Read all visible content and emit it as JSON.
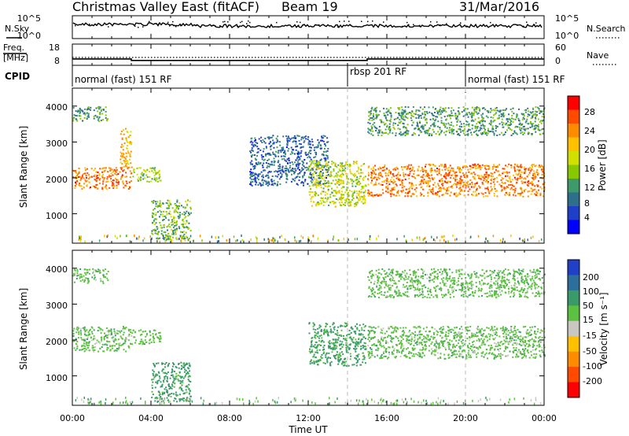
{
  "header": {
    "title": "Christmas Valley East (fitACF)",
    "beam": "Beam 19",
    "date": "31/Mar/2016"
  },
  "labels": {
    "nsky": "N.Sky",
    "nsearch": "N.Search",
    "freq": "Freq.",
    "freq_unit": "[MHz]",
    "nave": "Nave",
    "cpid": "CPID",
    "noise_left_ticks": [
      "10^5",
      "10^0"
    ],
    "noise_right_ticks": [
      "10^5",
      "10^0"
    ],
    "freq_ticks": [
      "18",
      "8"
    ],
    "nave_ticks": [
      "60",
      "0"
    ]
  },
  "cpid_segments": [
    {
      "label": "normal (fast) 151 RF",
      "start_hour": 0
    },
    {
      "label": "rbsp 201 RF",
      "start_hour": 14
    },
    {
      "label": "normal (fast) 151 RF",
      "start_hour": 20
    }
  ],
  "axes": {
    "xlabel": "Time UT",
    "ylabel_top": "Slant Range [km]",
    "ylabel_bottom": "Slant Range [km]",
    "x_ticks": [
      "00:00",
      "04:00",
      "08:00",
      "12:00",
      "16:00",
      "20:00",
      "00:00"
    ],
    "y_ticks_top": [
      "4000",
      "3000",
      "2000",
      "1000"
    ],
    "y_ticks_bottom": [
      "4000",
      "3000",
      "2000",
      "1000"
    ]
  },
  "colorbars": {
    "power": {
      "label": "Power [dB]",
      "ticks": [
        "28",
        "24",
        "20",
        "16",
        "12",
        "8",
        "4"
      ],
      "colors": [
        "#ff0000",
        "#ff4a00",
        "#ff8c00",
        "#ffc000",
        "#d2e000",
        "#88c800",
        "#3d9a6a",
        "#2e6f8c",
        "#1e3fc8",
        "#0000ff"
      ]
    },
    "velocity": {
      "label": "Velocity [m s⁻¹]",
      "ticks": [
        "200",
        "100",
        "50",
        "15",
        "-15",
        "-50",
        "-100",
        "-200"
      ],
      "colors": [
        "#2040c8",
        "#2c6e9c",
        "#3a9a6a",
        "#5cc040",
        "#c8c8c0",
        "#ffc000",
        "#ff8c00",
        "#ff4a00",
        "#ff0000"
      ]
    }
  },
  "chart_data": {
    "type": "heatmap",
    "xlim_hours": [
      0,
      24
    ],
    "ylim_km": [
      180,
      4500
    ],
    "cpid_change_hours": [
      14,
      20
    ],
    "frequency_mhz": [
      {
        "start_hour": 0,
        "end_hour": 3,
        "value": 11
      },
      {
        "start_hour": 3,
        "end_hour": 15,
        "value": 10.3
      },
      {
        "start_hour": 15,
        "end_hour": 24,
        "value": 11
      }
    ],
    "panels": [
      {
        "name": "Power",
        "features": [
          {
            "hours": [
              0.0,
              3.0
            ],
            "range_km": [
              1700,
              2300
            ],
            "value_db": 24
          },
          {
            "hours": [
              0.0,
              1.8
            ],
            "range_km": [
              3600,
              4000
            ],
            "value_db": 10
          },
          {
            "hours": [
              2.4,
              3.0
            ],
            "range_km": [
              2300,
              3400
            ],
            "value_db": 20
          },
          {
            "hours": [
              3.0,
              4.5
            ],
            "range_km": [
              1900,
              2300
            ],
            "value_db": 14
          },
          {
            "hours": [
              4.0,
              6.0
            ],
            "range_km": [
              300,
              1400
            ],
            "value_db": 12
          },
          {
            "hours": [
              9.0,
              13.0
            ],
            "range_km": [
              1800,
              3200
            ],
            "value_db": 6
          },
          {
            "hours": [
              12.0,
              14.9
            ],
            "range_km": [
              1200,
              2500
            ],
            "value_db": 16
          },
          {
            "hours": [
              15.0,
              24.0
            ],
            "range_km": [
              1500,
              2400
            ],
            "value_db": 24
          },
          {
            "hours": [
              15.0,
              24.0
            ],
            "range_km": [
              3200,
              4000
            ],
            "value_db": 10
          }
        ]
      },
      {
        "name": "Velocity",
        "features": [
          {
            "hours": [
              0.0,
              3.0
            ],
            "range_km": [
              1700,
              2400
            ],
            "value_ms": 0
          },
          {
            "hours": [
              0.0,
              1.8
            ],
            "range_km": [
              3600,
              4000
            ],
            "value_ms": 0
          },
          {
            "hours": [
              3.0,
              4.5
            ],
            "range_km": [
              1900,
              2300
            ],
            "value_ms": 0
          },
          {
            "hours": [
              4.0,
              6.0
            ],
            "range_km": [
              300,
              1400
            ],
            "value_ms": 30
          },
          {
            "hours": [
              12.0,
              14.9
            ],
            "range_km": [
              1300,
              2500
            ],
            "value_ms": 25
          },
          {
            "hours": [
              15.0,
              24.0
            ],
            "range_km": [
              1500,
              2400
            ],
            "value_ms": 0
          },
          {
            "hours": [
              15.0,
              24.0
            ],
            "range_km": [
              3200,
              4000
            ],
            "value_ms": 0
          }
        ]
      }
    ]
  }
}
